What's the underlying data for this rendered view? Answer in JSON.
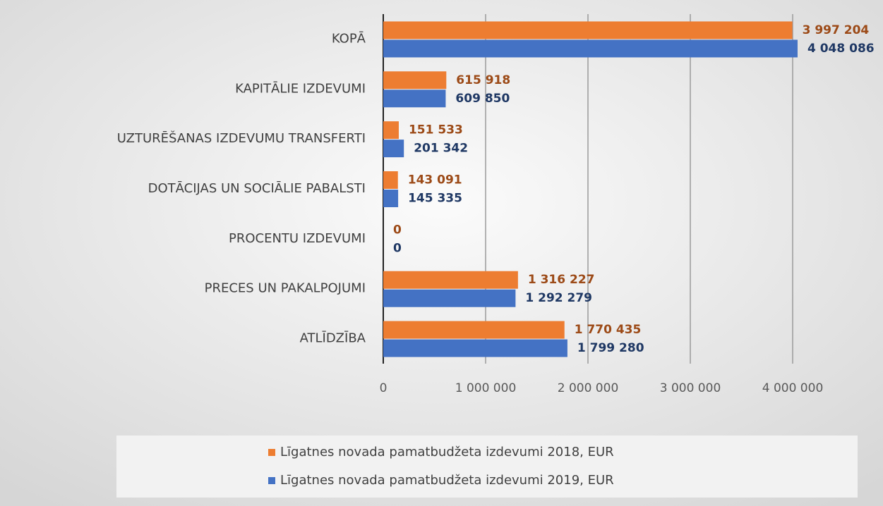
{
  "chart_data": {
    "type": "hbar",
    "categories": [
      "KOPĀ",
      "KAPITĀLIE IZDEVUMI",
      "UZTURĒŠANAS IZDEVUMU TRANSFERTI",
      "DOTĀCIJAS UN SOCIĀLIE PABALSTI",
      "PROCENTU IZDEVUMI",
      "PRECES UN PAKALPOJUMI",
      "ATLĪDZĪBA"
    ],
    "series": [
      {
        "name": "Līgatnes novada pamatbudžeta izdevumi 2018, EUR",
        "color": "#ed7d31",
        "label_color": "#9c4a17",
        "values": [
          3997204,
          615918,
          151533,
          143091,
          0,
          1316227,
          1770435
        ],
        "value_labels": [
          "3 997 204",
          "615 918",
          "151 533",
          "143 091",
          "0",
          "1 316 227",
          "1 770 435"
        ]
      },
      {
        "name": "Līgatnes novada pamatbudžeta izdevumi 2019, EUR",
        "color": "#4472c4",
        "label_color": "#1f3864",
        "values": [
          4048086,
          609850,
          201342,
          145335,
          0,
          1292279,
          1799280
        ],
        "value_labels": [
          "4 048 086",
          "609 850",
          "201 342",
          "145 335",
          "0",
          "1 292 279",
          "1 799 280"
        ]
      }
    ],
    "xlim": [
      0,
      4500000
    ],
    "xticks": [
      0,
      {
        "value": 1000000,
        "label": "1 000 000"
      },
      {
        "value": 2000000,
        "label": "2 000 000"
      },
      {
        "value": 3000000,
        "label": "3 000 000"
      },
      {
        "value": 4000000,
        "label": "4 000 000"
      }
    ],
    "grid": true,
    "legend": "bottom"
  }
}
